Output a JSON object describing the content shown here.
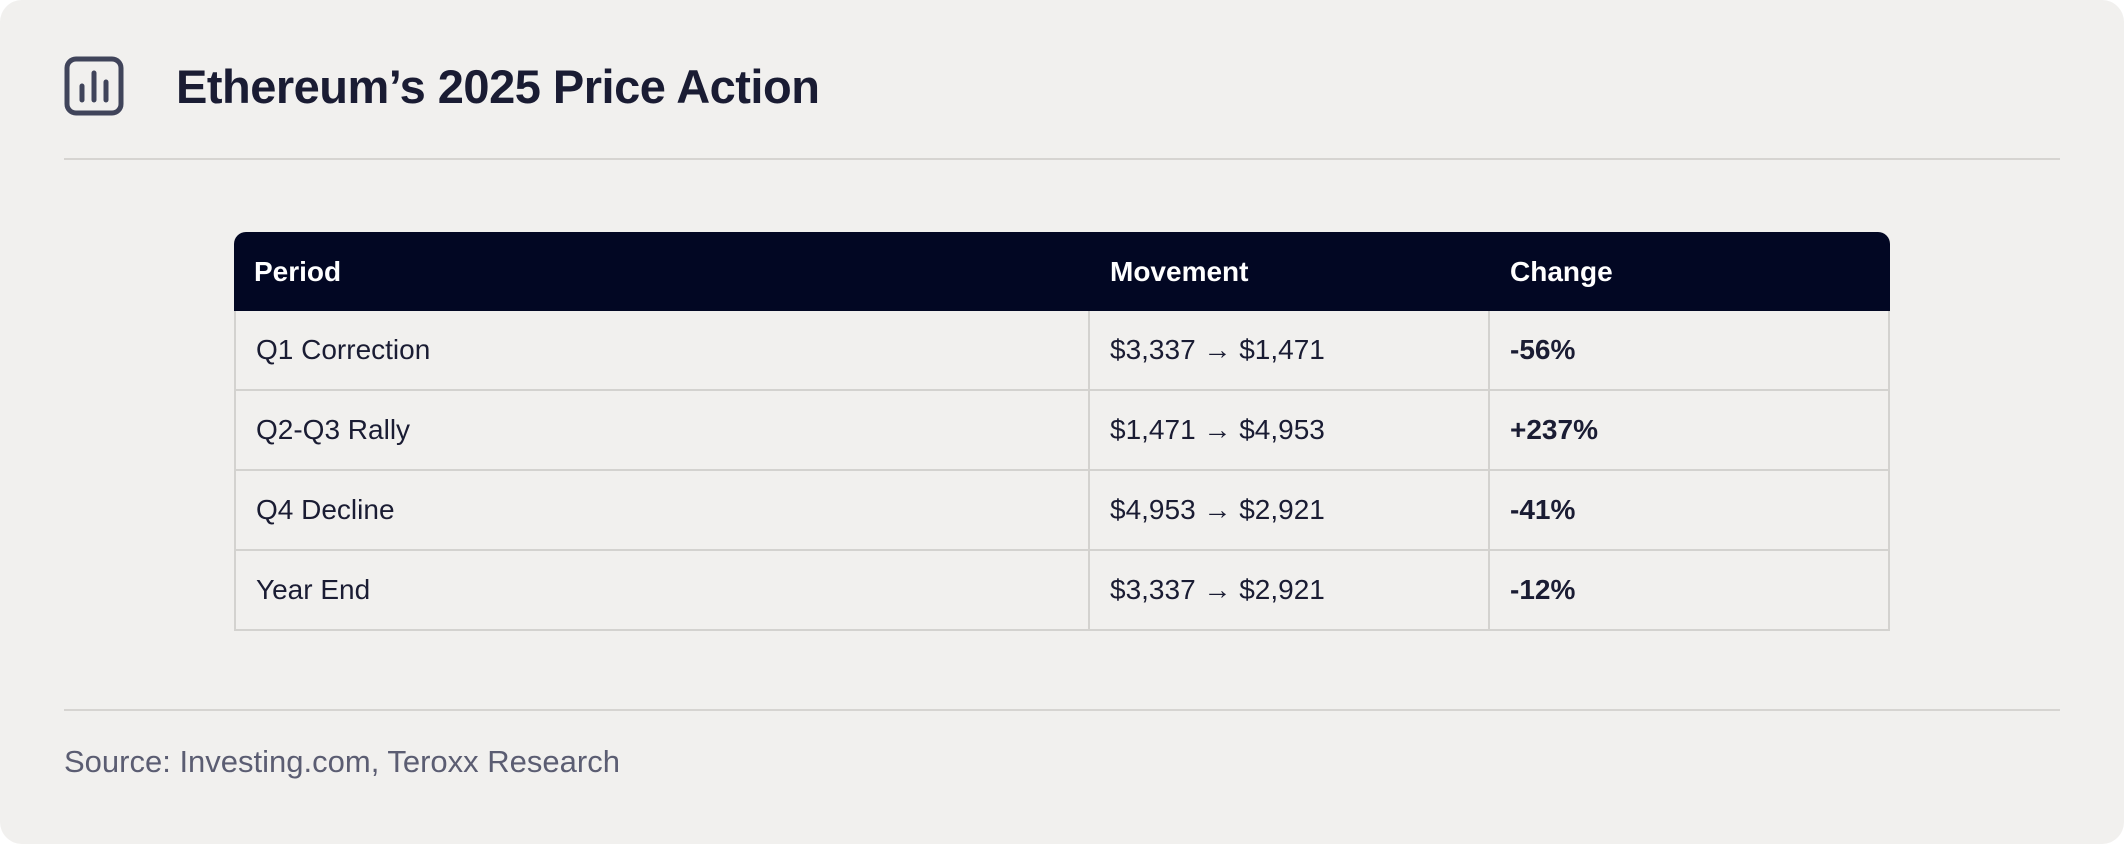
{
  "header": {
    "icon": "bar-chart-icon",
    "title": "Ethereum’s 2025 Price Action"
  },
  "colors": {
    "background": "#f1f0ee",
    "header_row": "#020723",
    "text": "#1a1c33",
    "source_text": "#5b5d72"
  },
  "chart_data": {
    "type": "table",
    "columns": [
      "Period",
      "Movement",
      "Change"
    ],
    "rows": [
      [
        "Q1 Correction",
        "$3,337 → $1,471",
        "-56%"
      ],
      [
        "Q2-Q3 Rally",
        "$1,471 → $4,953",
        "+237%"
      ],
      [
        "Q4 Decline",
        "$4,953 → $2,921",
        "-41%"
      ],
      [
        "Year End",
        "$3,337 → $2,921",
        "-12%"
      ]
    ]
  },
  "footer": {
    "source": "Source: Investing.com, Teroxx Research"
  }
}
